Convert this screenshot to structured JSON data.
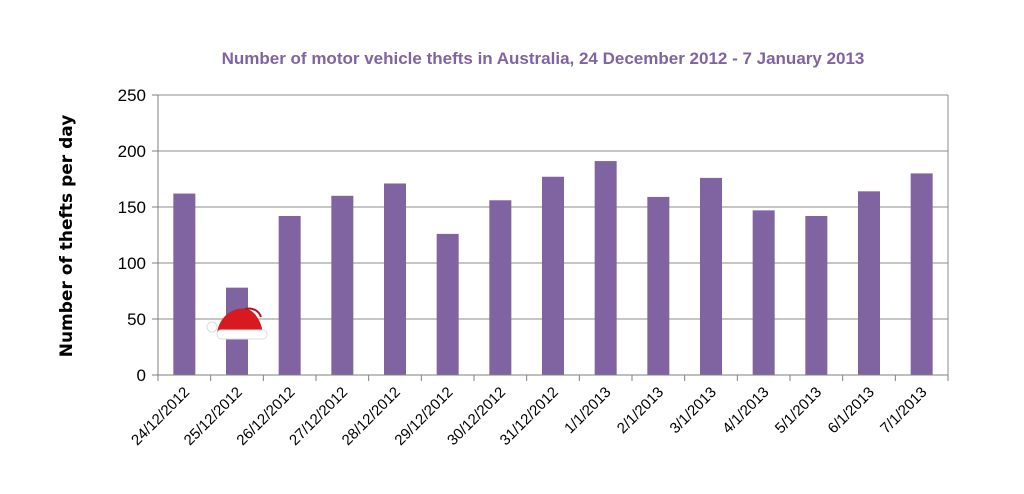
{
  "chart_data": {
    "type": "bar",
    "title": "Number of motor vehicle thefts in Australia, 24 December 2012 - 7 January 2013",
    "xlabel": "",
    "ylabel": "Number of thefts per day",
    "ylim": [
      0,
      250
    ],
    "yticks": [
      0,
      50,
      100,
      150,
      200,
      250
    ],
    "grid": true,
    "legend": "none",
    "categories": [
      "24/12/2012",
      "25/12/2012",
      "26/12/2012",
      "27/12/2012",
      "28/12/2012",
      "29/12/2012",
      "30/12/2012",
      "31/12/2012",
      "1/1/2013",
      "2/1/2013",
      "3/1/2013",
      "4/1/2013",
      "5/1/2013",
      "6/1/2013",
      "7/1/2013"
    ],
    "values": [
      162,
      78,
      142,
      160,
      171,
      126,
      156,
      177,
      191,
      159,
      176,
      147,
      142,
      164,
      180
    ],
    "colors": {
      "bar": "#8064a2",
      "title": "#8064a2",
      "grid": "#8c8c8c"
    },
    "annotations": [
      {
        "type": "icon",
        "icon": "santa-hat-icon",
        "category": "25/12/2012"
      }
    ]
  }
}
